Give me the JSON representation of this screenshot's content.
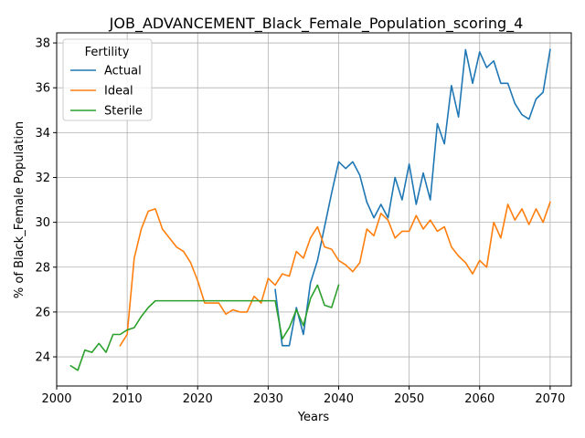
{
  "chart_data": {
    "type": "line",
    "title": "JOB_ADVANCEMENT_Black_Female_Population_scoring_4",
    "xlabel": "Years",
    "ylabel": "% of Black_Female Population",
    "xlim": [
      2000,
      2073
    ],
    "ylim": [
      22.7,
      38.45
    ],
    "xticks": [
      2000,
      2010,
      2020,
      2030,
      2040,
      2050,
      2060,
      2070
    ],
    "yticks": [
      24,
      26,
      28,
      30,
      32,
      34,
      36,
      38
    ],
    "grid": true,
    "legend": {
      "title": "Fertility",
      "location": "upper-left"
    },
    "series": [
      {
        "name": "Actual",
        "color": "#1f77b4",
        "x": [
          2031,
          2032,
          2033,
          2034,
          2035,
          2036,
          2037,
          2038,
          2039,
          2040,
          2041,
          2042,
          2043,
          2044,
          2045,
          2046,
          2047,
          2048,
          2049,
          2050,
          2051,
          2052,
          2053,
          2054,
          2055,
          2056,
          2057,
          2058,
          2059,
          2060,
          2061,
          2062,
          2063,
          2064,
          2065,
          2066,
          2067,
          2068,
          2069,
          2070
        ],
        "y": [
          27.0,
          24.5,
          24.5,
          26.2,
          25.0,
          27.3,
          28.3,
          29.8,
          31.3,
          32.7,
          32.4,
          32.7,
          32.1,
          30.9,
          30.2,
          30.8,
          30.2,
          32.0,
          31.0,
          32.6,
          30.8,
          32.2,
          31.0,
          34.4,
          33.5,
          36.1,
          34.7,
          37.7,
          36.2,
          37.6,
          36.9,
          37.2,
          36.2,
          36.2,
          35.3,
          34.8,
          34.6,
          35.5,
          35.8,
          37.7
        ]
      },
      {
        "name": "Ideal",
        "color": "#ff7f0e",
        "x": [
          2009,
          2010,
          2011,
          2012,
          2013,
          2014,
          2015,
          2016,
          2017,
          2018,
          2019,
          2020,
          2021,
          2022,
          2023,
          2024,
          2025,
          2026,
          2027,
          2028,
          2029,
          2030,
          2031,
          2032,
          2033,
          2034,
          2035,
          2036,
          2037,
          2038,
          2039,
          2040,
          2041,
          2042,
          2043,
          2044,
          2045,
          2046,
          2047,
          2048,
          2049,
          2050,
          2051,
          2052,
          2053,
          2054,
          2055,
          2056,
          2057,
          2058,
          2059,
          2060,
          2061,
          2062,
          2063,
          2064,
          2065,
          2066,
          2067,
          2068,
          2069,
          2070
        ],
        "y": [
          24.5,
          25.0,
          28.4,
          29.7,
          30.5,
          30.6,
          29.7,
          29.3,
          28.9,
          28.7,
          28.2,
          27.4,
          26.4,
          26.4,
          26.4,
          25.9,
          26.1,
          26.0,
          26.0,
          26.7,
          26.4,
          27.5,
          27.2,
          27.7,
          27.6,
          28.7,
          28.4,
          29.3,
          29.8,
          28.9,
          28.8,
          28.3,
          28.1,
          27.8,
          28.2,
          29.7,
          29.4,
          30.4,
          30.1,
          29.3,
          29.6,
          29.6,
          30.3,
          29.7,
          30.1,
          29.6,
          29.8,
          28.9,
          28.5,
          28.2,
          27.7,
          28.3,
          28.0,
          30.0,
          29.3,
          30.8,
          30.1,
          30.6,
          29.9,
          30.6,
          30.0,
          30.9
        ]
      },
      {
        "name": "Sterile",
        "color": "#2ca02c",
        "x": [
          2002,
          2003,
          2004,
          2005,
          2006,
          2007,
          2008,
          2009,
          2010,
          2011,
          2012,
          2013,
          2014,
          2015,
          2016,
          2017,
          2018,
          2019,
          2020,
          2021,
          2022,
          2023,
          2024,
          2025,
          2026,
          2027,
          2028,
          2029,
          2030,
          2031,
          2032,
          2033,
          2034,
          2035,
          2036,
          2037,
          2038,
          2039,
          2040
        ],
        "y": [
          23.6,
          23.4,
          24.3,
          24.2,
          24.6,
          24.2,
          25.0,
          25.0,
          25.2,
          25.3,
          25.8,
          26.2,
          26.5,
          26.5,
          26.5,
          26.5,
          26.5,
          26.5,
          26.5,
          26.5,
          26.5,
          26.5,
          26.5,
          26.5,
          26.5,
          26.5,
          26.5,
          26.5,
          26.5,
          26.5,
          24.8,
          25.3,
          26.1,
          25.4,
          26.6,
          27.2,
          26.3,
          26.2,
          27.2
        ]
      }
    ]
  }
}
